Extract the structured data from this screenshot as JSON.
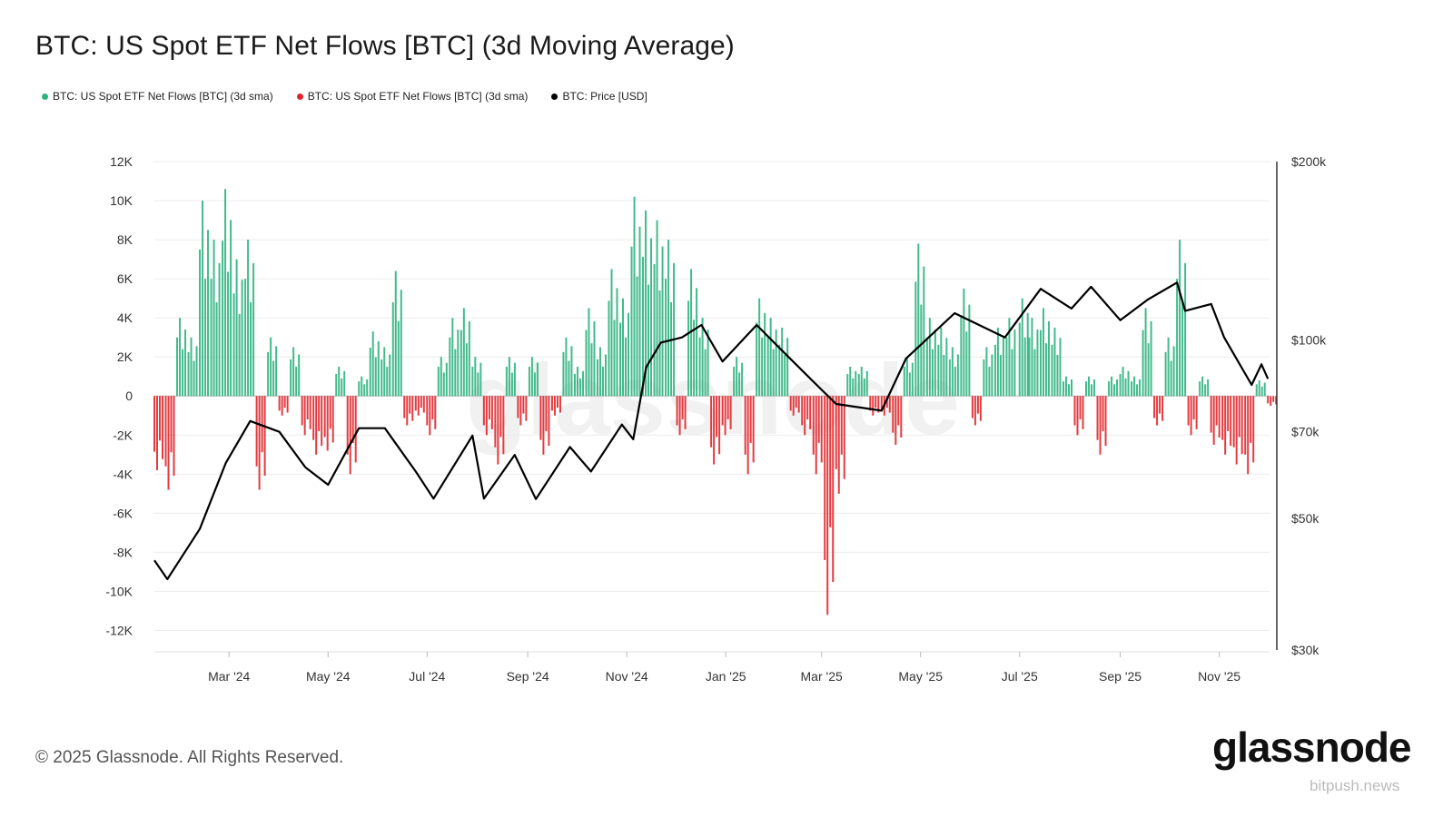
{
  "title": "BTC: US Spot ETF Net Flows [BTC] (3d Moving Average)",
  "legend": [
    {
      "label": "BTC: US Spot ETF Net Flows [BTC] (3d sma)",
      "color": "#2fb37f"
    },
    {
      "label": "BTC: US Spot ETF Net Flows [BTC] (3d sma)",
      "color": "#e0262b"
    },
    {
      "label": "BTC: Price [USD]",
      "color": "#000000"
    }
  ],
  "footer": "© 2025 Glassnode. All Rights Reserved.",
  "logo": "glassnode",
  "watermark": "bitpush.news",
  "chart_data": {
    "type": "bar+line",
    "colors": {
      "positive": "#2fb37f",
      "negative": "#e0262b",
      "price": "#000000"
    },
    "left_axis": {
      "ticks": [
        12000,
        10000,
        8000,
        6000,
        4000,
        2000,
        0,
        -2000,
        -4000,
        -6000,
        -8000,
        -10000,
        -12000
      ],
      "tick_labels": [
        "12K",
        "10K",
        "8K",
        "6K",
        "4K",
        "2K",
        "0",
        "-2K",
        "-4K",
        "-6K",
        "-8K",
        "-10K",
        "-12K"
      ],
      "ylim": [
        -13000,
        12000
      ]
    },
    "right_axis": {
      "scale": "log",
      "ticks": [
        200000,
        100000,
        70000,
        50000,
        30000
      ],
      "tick_labels": [
        "$200k",
        "$100k",
        "$70k",
        "$50k",
        "$30k"
      ],
      "ylim": [
        30000,
        200000
      ]
    },
    "x_axis": {
      "range": [
        "2024-01-15",
        "2025-12-02"
      ],
      "ticks": [
        {
          "date": "2024-03-01",
          "label": "Mar '24"
        },
        {
          "date": "2024-05-01",
          "label": "May '24"
        },
        {
          "date": "2024-07-01",
          "label": "Jul '24"
        },
        {
          "date": "2024-09-01",
          "label": "Sep '24"
        },
        {
          "date": "2024-11-01",
          "label": "Nov '24"
        },
        {
          "date": "2025-01-01",
          "label": "Jan '25"
        },
        {
          "date": "2025-03-01",
          "label": "Mar '25"
        },
        {
          "date": "2025-05-01",
          "label": "May '25"
        },
        {
          "date": "2025-07-01",
          "label": "Jul '25"
        },
        {
          "date": "2025-09-01",
          "label": "Sep '25"
        },
        {
          "date": "2025-11-01",
          "label": "Nov '25"
        }
      ]
    },
    "grid": true,
    "flows": [
      [
        "2024-01-15",
        -3800
      ],
      [
        "2024-01-22",
        -4800
      ],
      [
        "2024-01-29",
        4000
      ],
      [
        "2024-02-05",
        3000
      ],
      [
        "2024-02-12",
        10000
      ],
      [
        "2024-02-19",
        8000
      ],
      [
        "2024-02-26",
        10600
      ],
      [
        "2024-03-04",
        7000
      ],
      [
        "2024-03-11",
        8000
      ],
      [
        "2024-03-18",
        -4800
      ],
      [
        "2024-03-25",
        3000
      ],
      [
        "2024-04-01",
        -1000
      ],
      [
        "2024-04-08",
        2500
      ],
      [
        "2024-04-15",
        -2000
      ],
      [
        "2024-04-22",
        -3000
      ],
      [
        "2024-04-29",
        -2800
      ],
      [
        "2024-05-06",
        1500
      ],
      [
        "2024-05-13",
        -4000
      ],
      [
        "2024-05-20",
        1000
      ],
      [
        "2024-05-27",
        3300
      ],
      [
        "2024-06-03",
        2500
      ],
      [
        "2024-06-10",
        6400
      ],
      [
        "2024-06-17",
        -1500
      ],
      [
        "2024-06-24",
        -1000
      ],
      [
        "2024-07-01",
        -2000
      ],
      [
        "2024-07-08",
        2000
      ],
      [
        "2024-07-15",
        4000
      ],
      [
        "2024-07-22",
        4500
      ],
      [
        "2024-07-29",
        2000
      ],
      [
        "2024-08-05",
        -2000
      ],
      [
        "2024-08-12",
        -3500
      ],
      [
        "2024-08-19",
        2000
      ],
      [
        "2024-08-26",
        -1500
      ],
      [
        "2024-09-02",
        2000
      ],
      [
        "2024-09-09",
        -3000
      ],
      [
        "2024-09-16",
        -1000
      ],
      [
        "2024-09-23",
        3000
      ],
      [
        "2024-09-30",
        1500
      ],
      [
        "2024-10-07",
        4500
      ],
      [
        "2024-10-14",
        2500
      ],
      [
        "2024-10-21",
        6500
      ],
      [
        "2024-10-28",
        5000
      ],
      [
        "2024-11-04",
        10200
      ],
      [
        "2024-11-11",
        9500
      ],
      [
        "2024-11-18",
        9000
      ],
      [
        "2024-11-25",
        8000
      ],
      [
        "2024-12-02",
        -2000
      ],
      [
        "2024-12-09",
        6500
      ],
      [
        "2024-12-16",
        4000
      ],
      [
        "2024-12-23",
        -3500
      ],
      [
        "2024-12-30",
        -2000
      ],
      [
        "2025-01-06",
        2000
      ],
      [
        "2025-01-13",
        -4000
      ],
      [
        "2025-01-20",
        5000
      ],
      [
        "2025-01-27",
        4000
      ],
      [
        "2025-02-03",
        3500
      ],
      [
        "2025-02-10",
        -1000
      ],
      [
        "2025-02-17",
        -2000
      ],
      [
        "2025-02-24",
        -4000
      ],
      [
        "2025-03-03",
        -11200
      ],
      [
        "2025-03-10",
        -5000
      ],
      [
        "2025-03-17",
        1500
      ],
      [
        "2025-03-24",
        1500
      ],
      [
        "2025-03-31",
        -1000
      ],
      [
        "2025-04-07",
        -1000
      ],
      [
        "2025-04-14",
        -2500
      ],
      [
        "2025-04-21",
        2000
      ],
      [
        "2025-04-28",
        7800
      ],
      [
        "2025-05-05",
        4000
      ],
      [
        "2025-05-12",
        3500
      ],
      [
        "2025-05-19",
        2500
      ],
      [
        "2025-05-26",
        5500
      ],
      [
        "2025-06-02",
        -1500
      ],
      [
        "2025-06-09",
        2500
      ],
      [
        "2025-06-16",
        3500
      ],
      [
        "2025-06-23",
        4000
      ],
      [
        "2025-07-01",
        5000
      ],
      [
        "2025-07-07",
        4000
      ],
      [
        "2025-07-14",
        4500
      ],
      [
        "2025-07-21",
        3500
      ],
      [
        "2025-07-28",
        1000
      ],
      [
        "2025-08-04",
        -2000
      ],
      [
        "2025-08-11",
        1000
      ],
      [
        "2025-08-18",
        -3000
      ],
      [
        "2025-08-25",
        1000
      ],
      [
        "2025-09-01",
        1500
      ],
      [
        "2025-09-08",
        1000
      ],
      [
        "2025-09-15",
        4500
      ],
      [
        "2025-09-22",
        -1500
      ],
      [
        "2025-09-29",
        3000
      ],
      [
        "2025-10-06",
        8000
      ],
      [
        "2025-10-13",
        -2000
      ],
      [
        "2025-10-20",
        1000
      ],
      [
        "2025-10-27",
        -2500
      ],
      [
        "2025-11-03",
        -3000
      ],
      [
        "2025-11-10",
        -3500
      ],
      [
        "2025-11-17",
        -4000
      ],
      [
        "2025-11-24",
        800
      ],
      [
        "2025-12-01",
        -500
      ]
    ],
    "price": [
      [
        "2024-01-15",
        42500
      ],
      [
        "2024-01-23",
        39500
      ],
      [
        "2024-02-12",
        48000
      ],
      [
        "2024-02-28",
        62000
      ],
      [
        "2024-03-14",
        73000
      ],
      [
        "2024-04-01",
        70000
      ],
      [
        "2024-04-17",
        61000
      ],
      [
        "2024-05-01",
        57000
      ],
      [
        "2024-05-20",
        71000
      ],
      [
        "2024-06-05",
        71000
      ],
      [
        "2024-06-24",
        60000
      ],
      [
        "2024-07-05",
        54000
      ],
      [
        "2024-07-29",
        69000
      ],
      [
        "2024-08-05",
        54000
      ],
      [
        "2024-08-24",
        64000
      ],
      [
        "2024-09-06",
        53900
      ],
      [
        "2024-09-27",
        66000
      ],
      [
        "2024-10-10",
        60000
      ],
      [
        "2024-10-29",
        72000
      ],
      [
        "2024-11-05",
        68000
      ],
      [
        "2024-11-13",
        90000
      ],
      [
        "2024-11-22",
        99000
      ],
      [
        "2024-12-05",
        101000
      ],
      [
        "2024-12-17",
        106000
      ],
      [
        "2024-12-30",
        92000
      ],
      [
        "2025-01-20",
        106000
      ],
      [
        "2025-02-03",
        97000
      ],
      [
        "2025-02-26",
        84000
      ],
      [
        "2025-03-10",
        78000
      ],
      [
        "2025-04-07",
        76000
      ],
      [
        "2025-04-22",
        93000
      ],
      [
        "2025-05-22",
        111000
      ],
      [
        "2025-06-22",
        101000
      ],
      [
        "2025-07-14",
        122000
      ],
      [
        "2025-08-02",
        113000
      ],
      [
        "2025-08-14",
        123000
      ],
      [
        "2025-09-01",
        108000
      ],
      [
        "2025-09-18",
        117000
      ],
      [
        "2025-10-06",
        125000
      ],
      [
        "2025-10-11",
        112000
      ],
      [
        "2025-10-27",
        115000
      ],
      [
        "2025-11-04",
        101000
      ],
      [
        "2025-11-21",
        84000
      ],
      [
        "2025-11-27",
        91000
      ],
      [
        "2025-12-01",
        86000
      ]
    ]
  }
}
